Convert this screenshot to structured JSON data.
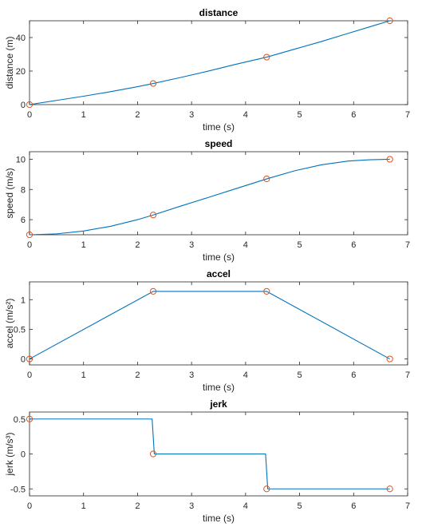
{
  "chart_data": [
    {
      "type": "line",
      "title": "distance",
      "xlabel": "time (s)",
      "ylabel": "distance (m)",
      "xlim": [
        0,
        7
      ],
      "ylim": [
        0,
        50
      ],
      "xticks": [
        0,
        1,
        2,
        3,
        4,
        5,
        6,
        7
      ],
      "yticks": [
        0,
        20,
        40
      ],
      "ytick_labels": [
        "0",
        "20",
        "40"
      ],
      "series": [
        {
          "style": "line",
          "color": "#0072bd",
          "x": [
            0,
            0.5,
            1.0,
            1.5,
            2.0,
            2.29,
            2.8,
            3.3,
            3.8,
            4.39,
            4.9,
            5.4,
            5.9,
            6.3,
            6.67
          ],
          "y": [
            0,
            2.5,
            5.0,
            7.7,
            10.7,
            12.6,
            16.2,
            19.9,
            23.9,
            28.3,
            33.0,
            37.6,
            42.5,
            46.4,
            50.0
          ]
        },
        {
          "style": "markers",
          "marker": "circle",
          "color": "#d95319",
          "x": [
            0,
            2.29,
            4.39,
            6.67
          ],
          "y": [
            0,
            12.6,
            28.3,
            50.0
          ]
        }
      ]
    },
    {
      "type": "line",
      "title": "speed",
      "xlabel": "time (s)",
      "ylabel": "speed (m/s)",
      "xlim": [
        0,
        7
      ],
      "ylim": [
        5,
        10.5
      ],
      "xticks": [
        0,
        1,
        2,
        3,
        4,
        5,
        6,
        7
      ],
      "yticks": [
        6,
        8,
        10
      ],
      "ytick_labels": [
        "6",
        "8",
        "10"
      ],
      "series": [
        {
          "style": "line",
          "color": "#0072bd",
          "x": [
            0,
            0.5,
            1.0,
            1.5,
            2.0,
            2.29,
            2.8,
            3.3,
            3.8,
            4.39,
            4.9,
            5.4,
            5.9,
            6.3,
            6.67
          ],
          "y": [
            5.0,
            5.06,
            5.25,
            5.56,
            6.0,
            6.31,
            6.9,
            7.46,
            8.03,
            8.7,
            9.23,
            9.63,
            9.88,
            9.97,
            10.0
          ]
        },
        {
          "style": "markers",
          "marker": "circle",
          "color": "#d95319",
          "x": [
            0,
            2.29,
            4.39,
            6.67
          ],
          "y": [
            5.0,
            6.31,
            8.7,
            10.0
          ]
        }
      ]
    },
    {
      "type": "line",
      "title": "accel",
      "xlabel": "time (s)",
      "ylabel": "accel (m/s²)",
      "xlim": [
        0,
        7
      ],
      "ylim": [
        -0.1,
        1.3
      ],
      "xticks": [
        0,
        1,
        2,
        3,
        4,
        5,
        6,
        7
      ],
      "yticks": [
        0,
        0.5,
        1
      ],
      "ytick_labels": [
        "0",
        "0.5",
        "1"
      ],
      "series": [
        {
          "style": "line",
          "color": "#0072bd",
          "x": [
            0,
            2.29,
            4.39,
            6.67
          ],
          "y": [
            0,
            1.14,
            1.14,
            0
          ]
        },
        {
          "style": "markers",
          "marker": "circle",
          "color": "#d95319",
          "x": [
            0,
            2.29,
            4.39,
            6.67
          ],
          "y": [
            0,
            1.14,
            1.14,
            0
          ]
        }
      ]
    },
    {
      "type": "line",
      "title": "jerk",
      "xlabel": "time (s)",
      "ylabel": "jerk (m/s³)",
      "xlim": [
        0,
        7
      ],
      "ylim": [
        -0.6,
        0.6
      ],
      "xticks": [
        0,
        1,
        2,
        3,
        4,
        5,
        6,
        7
      ],
      "yticks": [
        -0.5,
        0,
        0.5
      ],
      "ytick_labels": [
        "-0.5",
        "0",
        "0.5"
      ],
      "series": [
        {
          "style": "line",
          "color": "#0072bd",
          "x": [
            0,
            2.27,
            2.31,
            4.37,
            4.41,
            6.67
          ],
          "y": [
            0.5,
            0.5,
            0,
            0,
            -0.5,
            -0.5
          ]
        },
        {
          "style": "markers",
          "marker": "circle",
          "color": "#d95319",
          "x": [
            0,
            2.29,
            4.39,
            6.67
          ],
          "y": [
            0.5,
            0,
            -0.5,
            -0.5
          ]
        }
      ]
    }
  ]
}
